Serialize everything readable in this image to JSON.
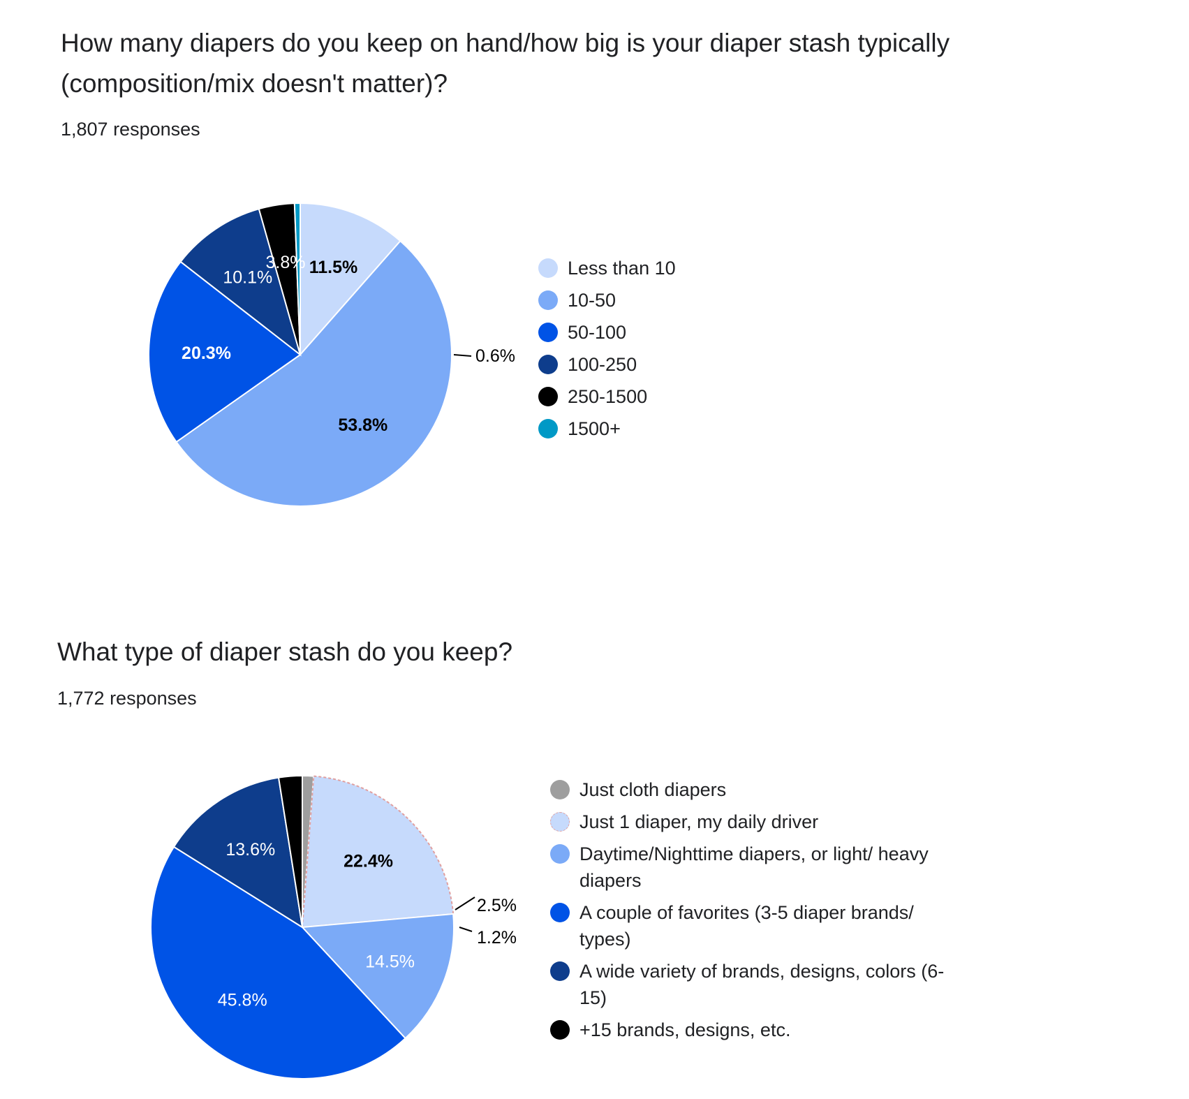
{
  "cards": [
    {
      "title": "How many diapers do you keep on hand/how big is your diaper stash typically (composition/mix doesn't matter)?",
      "responses": "1,807 responses"
    },
    {
      "title": "What type of diaper stash do you keep?",
      "responses": "1,772 responses"
    }
  ],
  "chart_data": [
    {
      "type": "pie",
      "title": "How many diapers do you keep on hand/how big is your diaper stash typically (composition/mix doesn't matter)?",
      "legend_position": "right",
      "slices": [
        {
          "label": "Less than 10",
          "value": 11.5,
          "display": "11.5%",
          "color": "#c6dafc",
          "label_color": "#000000",
          "bold": true
        },
        {
          "label": "10-50",
          "value": 53.8,
          "display": "53.8%",
          "color": "#7baaf7",
          "label_color": "#000000",
          "bold": true
        },
        {
          "label": "50-100",
          "value": 20.3,
          "display": "20.3%",
          "color": "#0053e6",
          "label_color": "#ffffff",
          "bold": true
        },
        {
          "label": "100-250",
          "value": 10.1,
          "display": "10.1%",
          "color": "#0e3d8c",
          "label_color": "#ffffff",
          "bold": false
        },
        {
          "label": "250-1500",
          "value": 3.8,
          "display": "3.8%",
          "color": "#000000",
          "label_color": "#ffffff",
          "bold": false
        },
        {
          "label": "1500+",
          "value": 0.6,
          "display": "0.6%",
          "color": "#0099c6",
          "label_color": "#000000",
          "bold": false,
          "outside": true
        }
      ]
    },
    {
      "type": "pie",
      "title": "What type of diaper stash do you keep?",
      "legend_position": "right",
      "slices": [
        {
          "label": "Just cloth diapers",
          "value": 1.2,
          "display": "1.2%",
          "color": "#9e9e9e",
          "label_color": "#000000",
          "bold": false,
          "outside": true
        },
        {
          "label": "Just 1 diaper, my daily driver",
          "value": 22.4,
          "display": "22.4%",
          "color": "#c6dafc",
          "label_color": "#000000",
          "bold": true,
          "outline": "#e0a0a0"
        },
        {
          "label": "Daytime/Nighttime diapers, or light/ heavy diapers",
          "value": 14.5,
          "display": "14.5%",
          "color": "#7baaf7",
          "label_color": "#ffffff",
          "bold": false
        },
        {
          "label": "A couple of favorites (3-5 diaper brands/ types)",
          "value": 45.8,
          "display": "45.8%",
          "color": "#0053e6",
          "label_color": "#ffffff",
          "bold": false
        },
        {
          "label": "A wide variety of brands, designs, colors (6-15)",
          "value": 13.6,
          "display": "13.6%",
          "color": "#0e3d8c",
          "label_color": "#ffffff",
          "bold": false
        },
        {
          "label": "+15 brands, designs, etc.",
          "value": 2.5,
          "display": "2.5%",
          "color": "#000000",
          "label_color": "#000000",
          "bold": false,
          "outside": true
        }
      ]
    }
  ]
}
